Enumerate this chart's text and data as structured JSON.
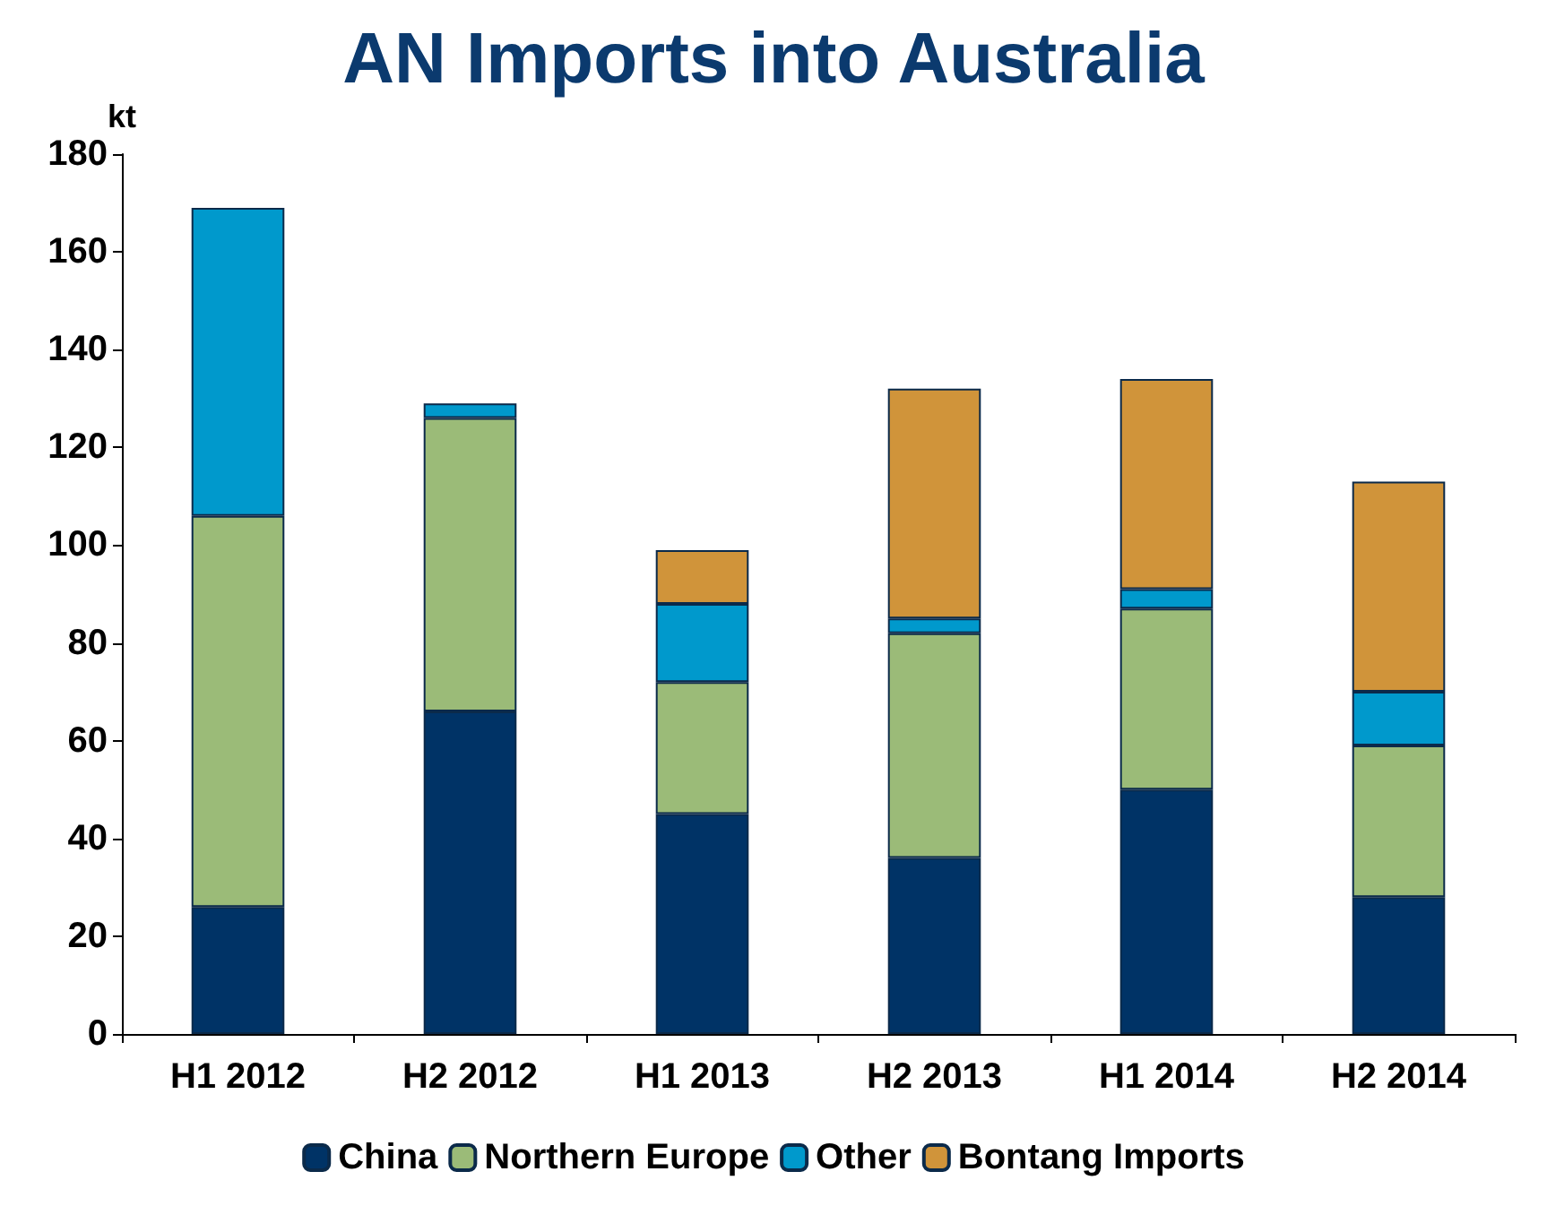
{
  "chart_data": {
    "type": "bar",
    "title": "AN Imports into Australia",
    "ylabel": "kt",
    "categories": [
      "H1 2012",
      "H2 2012",
      "H1 2013",
      "H2 2013",
      "H1 2014",
      "H2 2014"
    ],
    "stacked": true,
    "ylim": [
      0,
      180
    ],
    "yticks": [
      0,
      20,
      40,
      60,
      80,
      100,
      120,
      140,
      160,
      180
    ],
    "grid": false,
    "legend": "bottom",
    "series": [
      {
        "name": "China",
        "color": "#003366",
        "values": [
          26,
          66,
          45,
          36,
          50,
          28
        ]
      },
      {
        "name": "Northern Europe",
        "color": "#9bbb78",
        "values": [
          80,
          60,
          27,
          46,
          37,
          31
        ]
      },
      {
        "name": "Other",
        "color": "#0099cc",
        "values": [
          63,
          3,
          16,
          3,
          4,
          11
        ]
      },
      {
        "name": "Bontang Imports",
        "color": "#d0943a",
        "values": [
          null,
          null,
          11,
          47,
          43,
          43
        ]
      }
    ]
  }
}
